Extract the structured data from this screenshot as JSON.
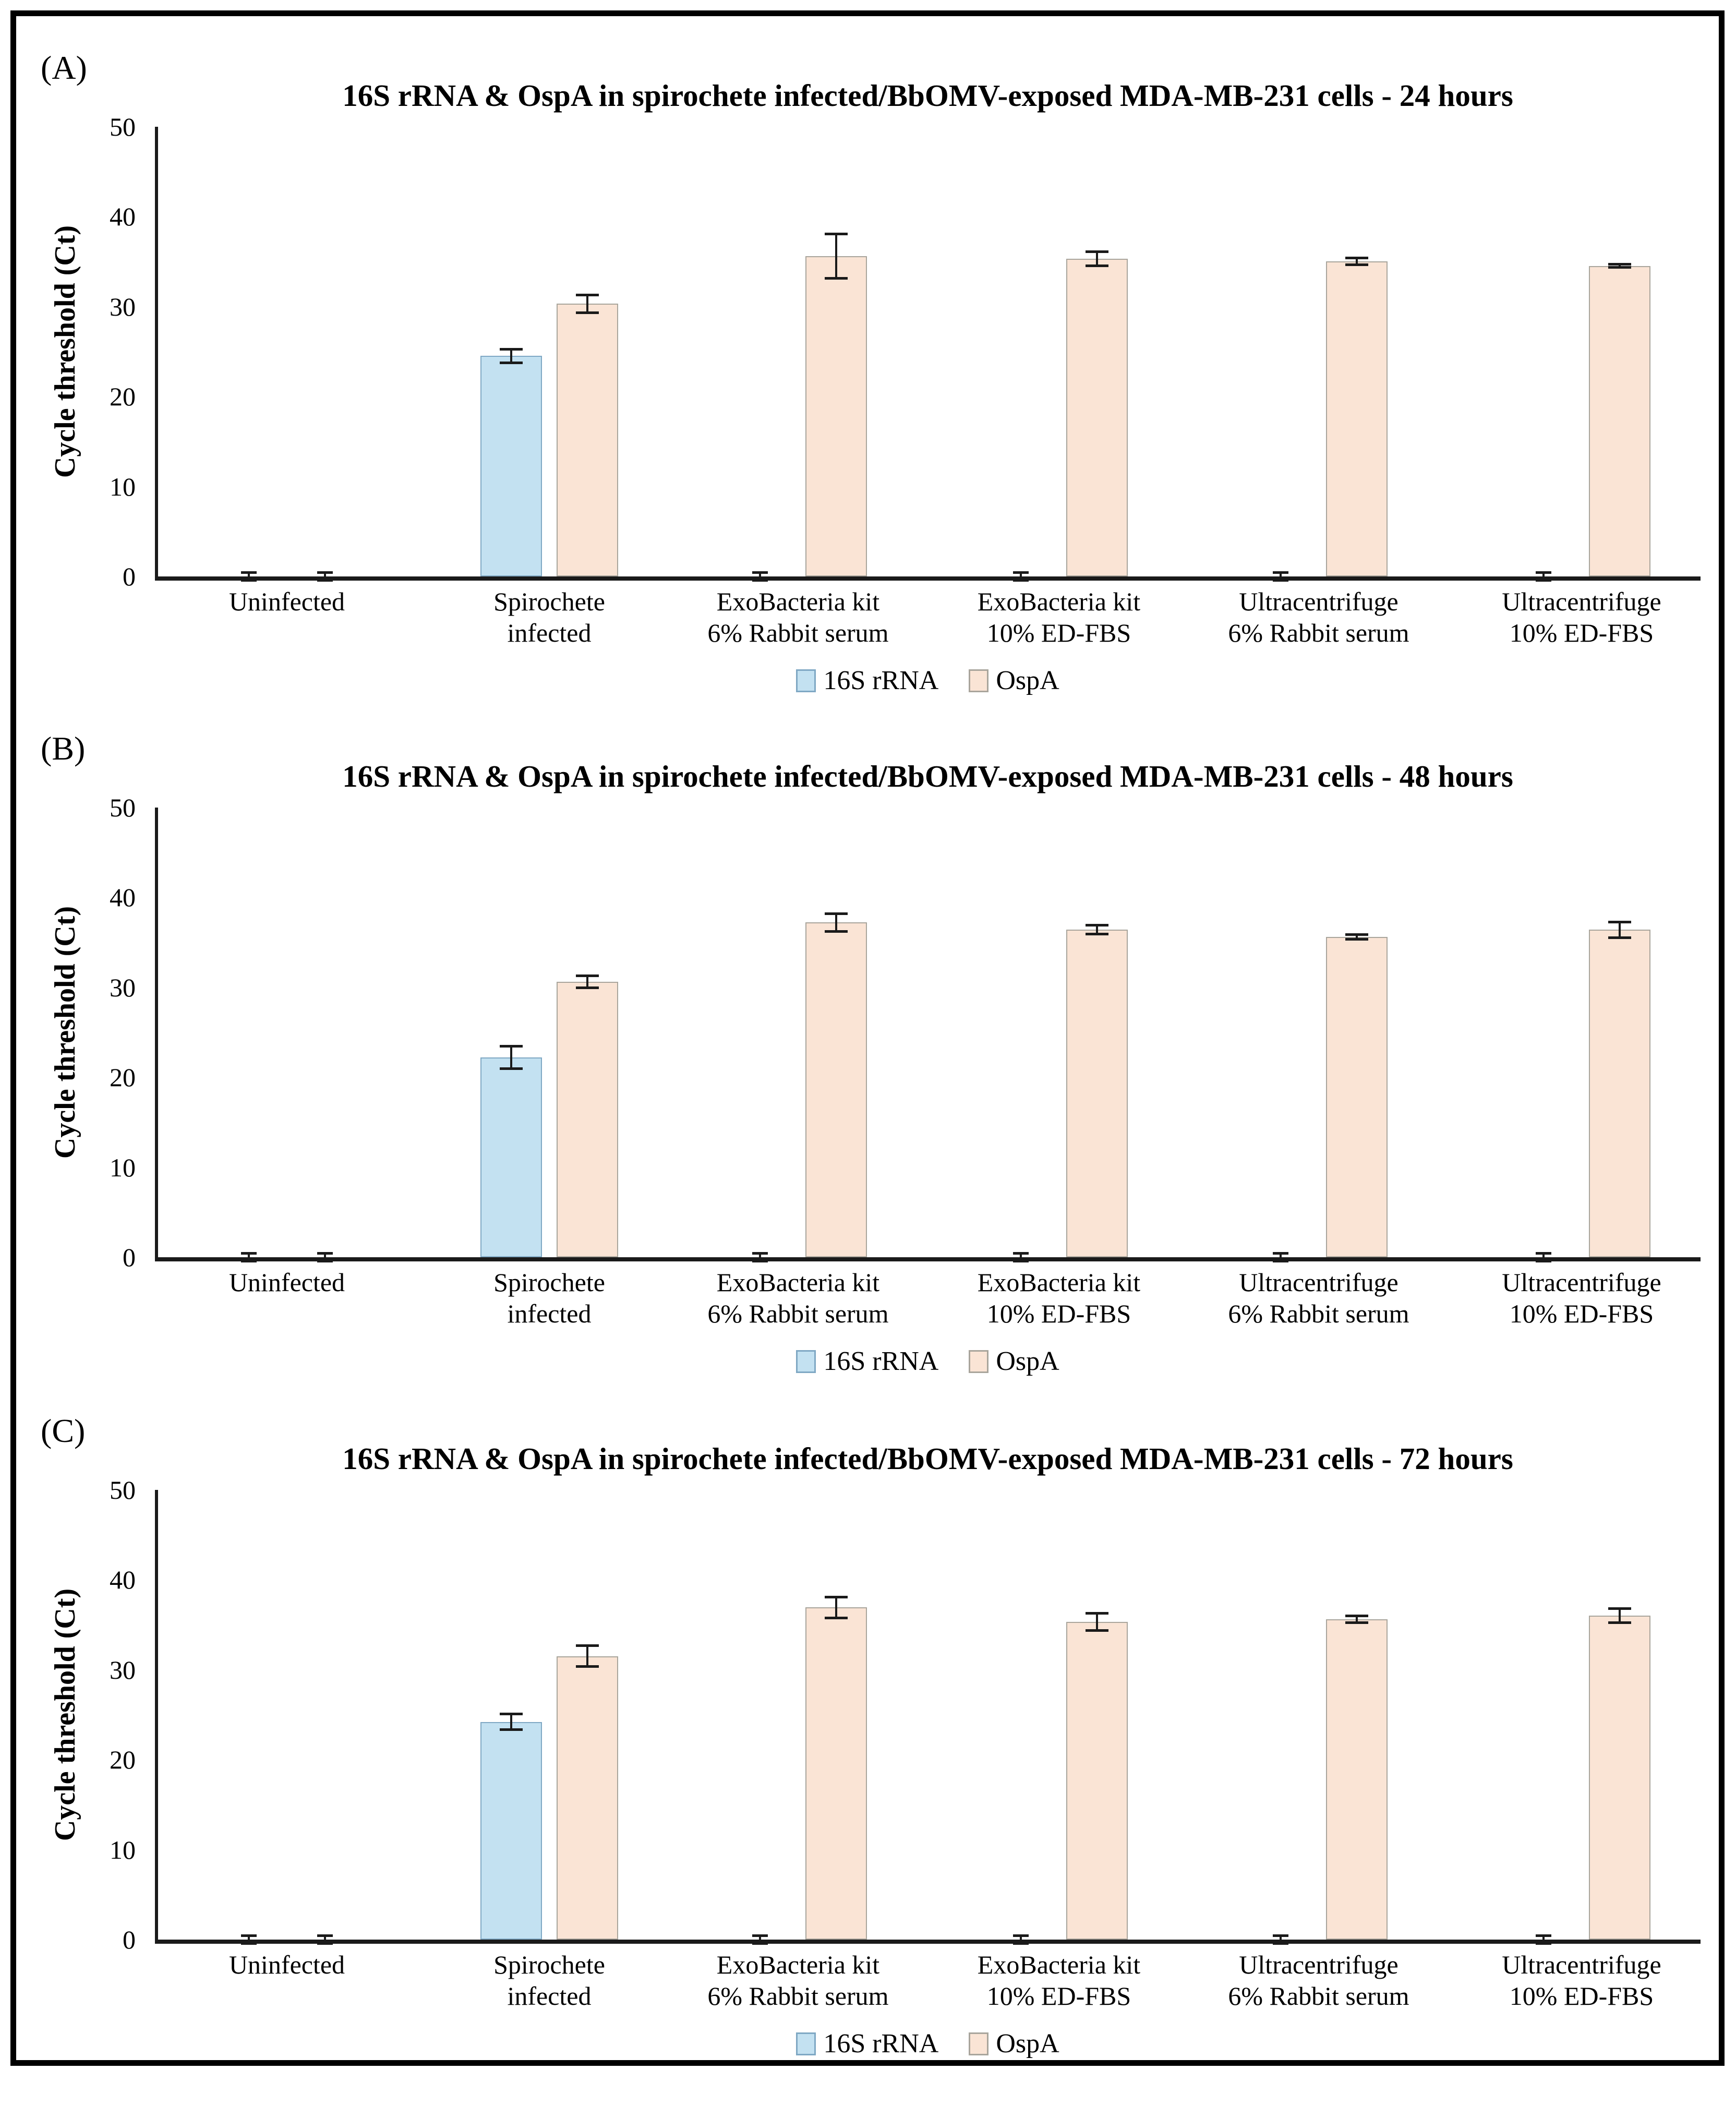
{
  "figure": {
    "background": "#FFFFFF",
    "frame_border_color": "#000000"
  },
  "chart_data": [
    {
      "panel": "(A)",
      "type": "bar",
      "title": "16S rRNA & OspA in spirochete infected/BbOMV-exposed MDA-MB-231 cells - 24 hours",
      "ylabel": "Cycle threshold (Ct)",
      "ylim": [
        0,
        50
      ],
      "yticks": [
        0,
        10,
        20,
        30,
        40,
        50
      ],
      "grid": false,
      "legend_position": "bottom",
      "categories": [
        [
          "Uninfected"
        ],
        [
          "Spirochete",
          "infected"
        ],
        [
          "ExoBacteria kit",
          "6% Rabbit serum"
        ],
        [
          "ExoBacteria kit",
          "10% ED-FBS"
        ],
        [
          "Ultracentrifuge",
          "6% Rabbit serum"
        ],
        [
          "Ultracentrifuge",
          "10% ED-FBS"
        ]
      ],
      "series": [
        {
          "name": "16S rRNA",
          "color": "#C3E1F1",
          "border_color": "#7FA8C4",
          "values": [
            0,
            24.5,
            0,
            0,
            0,
            0
          ],
          "errors": [
            0.45,
            0.8,
            0.45,
            0.45,
            0.45,
            0.45
          ]
        },
        {
          "name": "OspA",
          "color": "#FAE4D5",
          "border_color": "#A9A59C",
          "values": [
            0,
            30.3,
            35.6,
            35.3,
            35.0,
            34.5
          ],
          "errors": [
            0.45,
            1.0,
            2.5,
            0.8,
            0.4,
            0.2
          ]
        }
      ]
    },
    {
      "panel": "(B)",
      "type": "bar",
      "title": "16S rRNA & OspA in spirochete infected/BbOMV-exposed MDA-MB-231 cells - 48 hours",
      "ylabel": "Cycle threshold (Ct)",
      "ylim": [
        0,
        50
      ],
      "yticks": [
        0,
        10,
        20,
        30,
        40,
        50
      ],
      "grid": false,
      "legend_position": "bottom",
      "categories": [
        [
          "Uninfected"
        ],
        [
          "Spirochete",
          "infected"
        ],
        [
          "ExoBacteria kit",
          "6% Rabbit serum"
        ],
        [
          "ExoBacteria kit",
          "10% ED-FBS"
        ],
        [
          "Ultracentrifuge",
          "6% Rabbit serum"
        ],
        [
          "Ultracentrifuge",
          "10% ED-FBS"
        ]
      ],
      "series": [
        {
          "name": "16S rRNA",
          "color": "#C3E1F1",
          "border_color": "#7FA8C4",
          "values": [
            0,
            22.2,
            0,
            0,
            0,
            0
          ],
          "errors": [
            0.45,
            1.3,
            0.45,
            0.45,
            0.45,
            0.45
          ]
        },
        {
          "name": "OspA",
          "color": "#FAE4D5",
          "border_color": "#A9A59C",
          "values": [
            0,
            30.6,
            37.2,
            36.4,
            35.6,
            36.4
          ],
          "errors": [
            0.45,
            0.7,
            1.0,
            0.5,
            0.3,
            0.9
          ]
        }
      ]
    },
    {
      "panel": "(C)",
      "type": "bar",
      "title": "16S rRNA & OspA in spirochete infected/BbOMV-exposed MDA-MB-231 cells - 72 hours",
      "ylabel": "Cycle threshold (Ct)",
      "ylim": [
        0,
        50
      ],
      "yticks": [
        0,
        10,
        20,
        30,
        40,
        50
      ],
      "grid": false,
      "legend_position": "bottom",
      "categories": [
        [
          "Uninfected"
        ],
        [
          "Spirochete",
          "infected"
        ],
        [
          "ExoBacteria kit",
          "6% Rabbit serum"
        ],
        [
          "ExoBacteria kit",
          "10% ED-FBS"
        ],
        [
          "Ultracentrifuge",
          "6% Rabbit serum"
        ],
        [
          "Ultracentrifuge",
          "10% ED-FBS"
        ]
      ],
      "series": [
        {
          "name": "16S rRNA",
          "color": "#C3E1F1",
          "border_color": "#7FA8C4",
          "values": [
            0,
            24.2,
            0,
            0,
            0,
            0
          ],
          "errors": [
            0.45,
            0.9,
            0.45,
            0.45,
            0.45,
            0.45
          ]
        },
        {
          "name": "OspA",
          "color": "#FAE4D5",
          "border_color": "#A9A59C",
          "values": [
            0,
            31.5,
            36.9,
            35.3,
            35.6,
            36.0
          ],
          "errors": [
            0.45,
            1.2,
            1.2,
            1.0,
            0.4,
            0.8
          ]
        }
      ]
    }
  ]
}
